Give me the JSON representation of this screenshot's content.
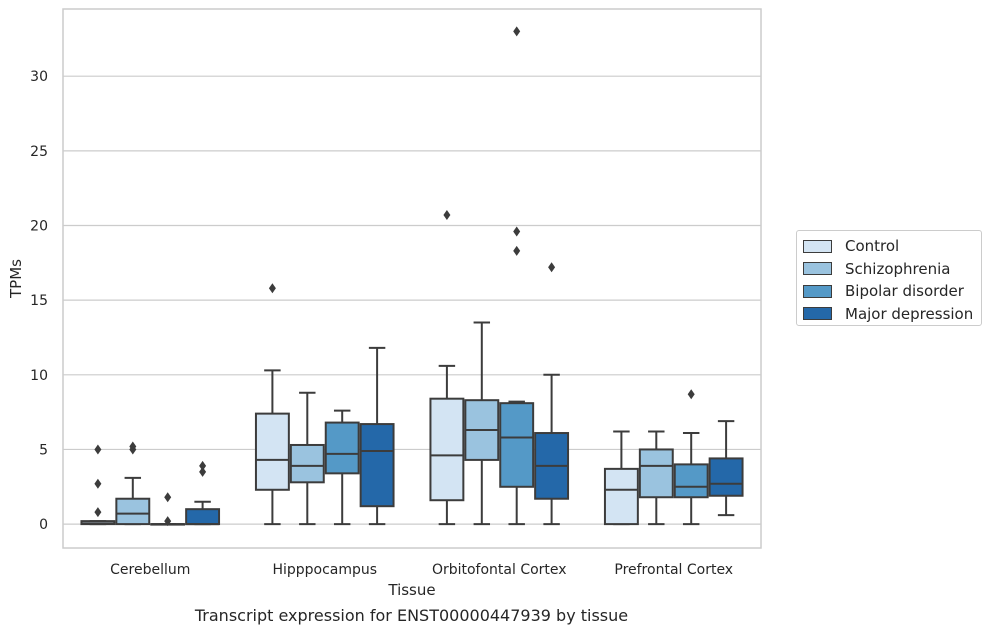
{
  "chart_data": {
    "type": "boxplot",
    "xlabel": "Tissue",
    "ylabel": "TPMs",
    "caption": "Transcript expression for ENST00000447939 by tissue",
    "ylim": [
      -1.6,
      34.5
    ],
    "yticks": [
      0,
      5,
      10,
      15,
      20,
      25,
      30
    ],
    "grid": "horizontal",
    "legend_position": "right",
    "categories": [
      "Cerebellum",
      "Hipppocampus",
      "Orbitofontal Cortex",
      "Prefrontal Cortex"
    ],
    "series": [
      {
        "name": "Control",
        "color": "#d3e4f3",
        "boxes": [
          {
            "min": 0,
            "q1": 0,
            "median": 0.05,
            "q3": 0.2,
            "max": 0.2,
            "outliers": [
              5.0,
              2.7,
              0.8
            ]
          },
          {
            "min": 0,
            "q1": 2.3,
            "median": 4.3,
            "q3": 7.4,
            "max": 10.3,
            "outliers": [
              15.8
            ]
          },
          {
            "min": 0,
            "q1": 1.6,
            "median": 4.6,
            "q3": 8.4,
            "max": 10.6,
            "outliers": [
              20.7
            ]
          },
          {
            "min": 0,
            "q1": 0,
            "median": 2.3,
            "q3": 3.7,
            "max": 6.2,
            "outliers": []
          }
        ]
      },
      {
        "name": "Schizophrenia",
        "color": "#9ac3df",
        "boxes": [
          {
            "min": 0,
            "q1": 0,
            "median": 0.7,
            "q3": 1.7,
            "max": 3.1,
            "outliers": [
              5.2,
              5.0
            ]
          },
          {
            "min": 0,
            "q1": 2.8,
            "median": 3.9,
            "q3": 5.3,
            "max": 8.8,
            "outliers": []
          },
          {
            "min": 0,
            "q1": 4.3,
            "median": 6.3,
            "q3": 8.3,
            "max": 13.5,
            "outliers": []
          },
          {
            "min": 0,
            "q1": 1.8,
            "median": 3.9,
            "q3": 5.0,
            "max": 6.2,
            "outliers": []
          }
        ]
      },
      {
        "name": "Bipolar disorder",
        "color": "#5499c7",
        "boxes": [
          {
            "min": 0,
            "q1": 0,
            "median": 0,
            "q3": 0,
            "max": 0,
            "outliers": [
              1.8,
              0.2
            ]
          },
          {
            "min": 0,
            "q1": 3.4,
            "median": 4.7,
            "q3": 6.8,
            "max": 7.6,
            "outliers": []
          },
          {
            "min": 0,
            "q1": 2.5,
            "median": 5.8,
            "q3": 8.1,
            "max": 8.2,
            "outliers": [
              33.0,
              19.6,
              18.3
            ]
          },
          {
            "min": 0,
            "q1": 1.8,
            "median": 2.5,
            "q3": 4.0,
            "max": 6.1,
            "outliers": [
              8.7
            ]
          }
        ]
      },
      {
        "name": "Major depression",
        "color": "#2468a9",
        "boxes": [
          {
            "min": 0,
            "q1": 0,
            "median": 0,
            "q3": 1.0,
            "max": 1.5,
            "outliers": [
              3.9,
              3.5
            ]
          },
          {
            "min": 0,
            "q1": 1.2,
            "median": 4.9,
            "q3": 6.7,
            "max": 11.8,
            "outliers": []
          },
          {
            "min": 0,
            "q1": 1.7,
            "median": 3.9,
            "q3": 6.1,
            "max": 10.0,
            "outliers": [
              17.2
            ]
          },
          {
            "min": 0.6,
            "q1": 1.9,
            "median": 2.7,
            "q3": 4.4,
            "max": 6.9,
            "outliers": []
          }
        ]
      }
    ]
  }
}
